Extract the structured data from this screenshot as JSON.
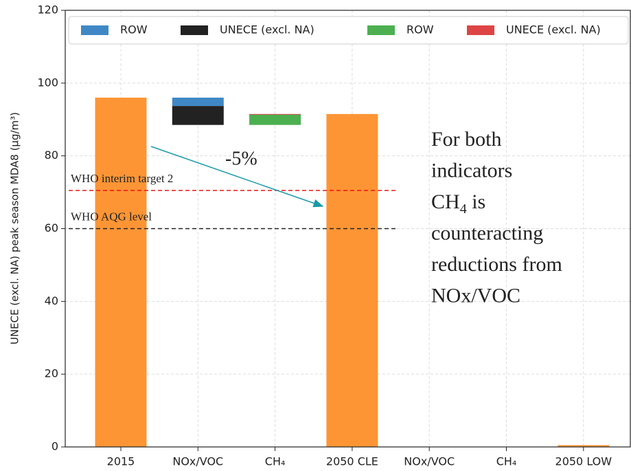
{
  "chart_data": {
    "type": "waterfall",
    "ylabel": "UNECE (excl. NA) peak season MDA8 (μg/m³)",
    "categories": [
      "2015",
      "NOx/VOC",
      "CH₄",
      "2050 CLE",
      "NOx/VOC",
      "CH₄",
      "2050 LOW"
    ],
    "totals": [
      96,
      null,
      null,
      91.5,
      null,
      null,
      0.5
    ],
    "total_color": "#fd9535",
    "series": [
      {
        "name": "ROW",
        "color": "#3f88c5",
        "values": [
          null,
          -2.3,
          null,
          null,
          null,
          null,
          null
        ]
      },
      {
        "name": "UNECE (excl. NA)",
        "color": "#222222",
        "values": [
          null,
          -5.2,
          null,
          null,
          null,
          null,
          null
        ]
      },
      {
        "name": "ROW",
        "color": "#4caf50",
        "values": [
          null,
          null,
          2.9,
          null,
          null,
          null,
          null
        ]
      },
      {
        "name": "UNECE (excl. NA)",
        "color": "#dd4444",
        "values": [
          null,
          null,
          0.1,
          null,
          null,
          null,
          null
        ]
      }
    ],
    "ylim": [
      0,
      120
    ],
    "yticks": [
      0,
      20,
      40,
      60,
      80,
      100,
      120
    ],
    "grid": true,
    "reference_lines": [
      {
        "value": 70.5,
        "label": "WHO interim target 2",
        "color": "#ee1111"
      },
      {
        "value": 60,
        "label": "WHO AQG level",
        "color": "#222222"
      }
    ],
    "change_label": "-5%",
    "note": [
      "For both",
      "indicators",
      [
        "CH",
        "4",
        " is"
      ],
      "counteracting",
      "reductions from",
      "NOx/VOC"
    ]
  }
}
